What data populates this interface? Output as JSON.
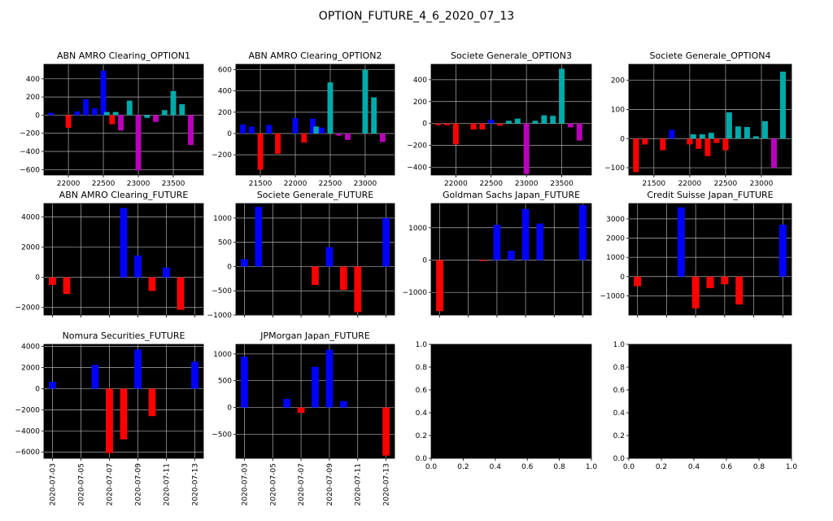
{
  "figure": {
    "title": "OPTION_FUTURE_4_6_2020_07_13"
  },
  "colors": {
    "axes_bg": "#000000",
    "grid": "#b0b0b0",
    "negative": "#ff0000",
    "positive": "#0000ff",
    "cyan": "#00aaaa",
    "magenta": "#bb00bb"
  },
  "chart_data": [
    {
      "type": "bar",
      "title": "ABN AMRO Clearing_OPTION1",
      "xlim": [
        21650,
        23930
      ],
      "ylim": [
        -660,
        560
      ],
      "xticks": [
        22000,
        22500,
        23000,
        23500
      ],
      "xtick_labels": [
        "22000",
        "22500",
        "23000",
        "23500"
      ],
      "yticks": [
        -600,
        -400,
        -200,
        0,
        200,
        400
      ],
      "bar_width": 80,
      "bars": [
        {
          "x": 21750,
          "value": 25,
          "color": "#0000ff"
        },
        {
          "x": 22000,
          "value": -140,
          "color": "#ff0000"
        },
        {
          "x": 22125,
          "value": 40,
          "color": "#0000ff"
        },
        {
          "x": 22250,
          "value": 175,
          "color": "#0000ff"
        },
        {
          "x": 22375,
          "value": 75,
          "color": "#0000ff"
        },
        {
          "x": 22500,
          "value": 490,
          "color": "#0000ff"
        },
        {
          "x": 22550,
          "value": 35,
          "color": "#00aaaa"
        },
        {
          "x": 22625,
          "value": -100,
          "color": "#ff0000"
        },
        {
          "x": 22675,
          "value": 35,
          "color": "#00aaaa"
        },
        {
          "x": 22750,
          "value": -170,
          "color": "#bb00bb"
        },
        {
          "x": 22875,
          "value": 160,
          "color": "#00aaaa"
        },
        {
          "x": 23000,
          "value": -610,
          "color": "#bb00bb"
        },
        {
          "x": 23125,
          "value": -30,
          "color": "#00aaaa"
        },
        {
          "x": 23250,
          "value": -75,
          "color": "#bb00bb"
        },
        {
          "x": 23375,
          "value": 55,
          "color": "#00aaaa"
        },
        {
          "x": 23500,
          "value": 265,
          "color": "#00aaaa"
        },
        {
          "x": 23625,
          "value": 120,
          "color": "#00aaaa"
        },
        {
          "x": 23750,
          "value": -330,
          "color": "#bb00bb"
        }
      ]
    },
    {
      "type": "bar",
      "title": "ABN AMRO Clearing_OPTION2",
      "xlim": [
        21150,
        23420
      ],
      "ylim": [
        -390,
        650
      ],
      "xticks": [
        21500,
        22000,
        22500,
        23000
      ],
      "xtick_labels": [
        "21500",
        "22000",
        "22500",
        "23000"
      ],
      "yticks": [
        -200,
        0,
        200,
        400,
        600
      ],
      "bar_width": 80,
      "bars": [
        {
          "x": 21250,
          "value": 85,
          "color": "#0000ff"
        },
        {
          "x": 21375,
          "value": 65,
          "color": "#0000ff"
        },
        {
          "x": 21500,
          "value": -340,
          "color": "#ff0000"
        },
        {
          "x": 21625,
          "value": 80,
          "color": "#0000ff"
        },
        {
          "x": 21750,
          "value": -190,
          "color": "#ff0000"
        },
        {
          "x": 22000,
          "value": 145,
          "color": "#0000ff"
        },
        {
          "x": 22125,
          "value": -85,
          "color": "#ff0000"
        },
        {
          "x": 22250,
          "value": 140,
          "color": "#0000ff"
        },
        {
          "x": 22300,
          "value": 65,
          "color": "#00aaaa"
        },
        {
          "x": 22375,
          "value": 55,
          "color": "#0000ff"
        },
        {
          "x": 22500,
          "value": 480,
          "color": "#00aaaa"
        },
        {
          "x": 22625,
          "value": -20,
          "color": "#bb00bb"
        },
        {
          "x": 22750,
          "value": -60,
          "color": "#bb00bb"
        },
        {
          "x": 23000,
          "value": 600,
          "color": "#00aaaa"
        },
        {
          "x": 23125,
          "value": 340,
          "color": "#00aaaa"
        },
        {
          "x": 23250,
          "value": -80,
          "color": "#bb00bb"
        }
      ]
    },
    {
      "type": "bar",
      "title": "Societe Generale_OPTION3",
      "xlim": [
        21650,
        23920
      ],
      "ylim": [
        -470,
        540
      ],
      "xticks": [
        22000,
        22500,
        23000,
        23500
      ],
      "xtick_labels": [
        "22000",
        "22500",
        "23000",
        "23500"
      ],
      "yticks": [
        -400,
        -200,
        0,
        200,
        400
      ],
      "bar_width": 80,
      "bars": [
        {
          "x": 21750,
          "value": -15,
          "color": "#ff0000"
        },
        {
          "x": 21875,
          "value": -15,
          "color": "#ff0000"
        },
        {
          "x": 22000,
          "value": -190,
          "color": "#ff0000"
        },
        {
          "x": 22250,
          "value": -55,
          "color": "#ff0000"
        },
        {
          "x": 22375,
          "value": -55,
          "color": "#ff0000"
        },
        {
          "x": 22500,
          "value": 35,
          "color": "#0000ff"
        },
        {
          "x": 22625,
          "value": -20,
          "color": "#ff0000"
        },
        {
          "x": 22750,
          "value": 25,
          "color": "#00aaaa"
        },
        {
          "x": 22875,
          "value": 45,
          "color": "#00aaaa"
        },
        {
          "x": 23000,
          "value": -460,
          "color": "#bb00bb"
        },
        {
          "x": 23125,
          "value": 25,
          "color": "#00aaaa"
        },
        {
          "x": 23250,
          "value": 75,
          "color": "#00aaaa"
        },
        {
          "x": 23375,
          "value": 70,
          "color": "#00aaaa"
        },
        {
          "x": 23500,
          "value": 500,
          "color": "#00aaaa"
        },
        {
          "x": 23625,
          "value": -35,
          "color": "#bb00bb"
        },
        {
          "x": 23750,
          "value": -155,
          "color": "#bb00bb"
        }
      ]
    },
    {
      "type": "bar",
      "title": "Societe Generale_OPTION4",
      "xlim": [
        21150,
        23420
      ],
      "ylim": [
        -125,
        255
      ],
      "xticks": [
        21500,
        22000,
        22500,
        23000
      ],
      "xtick_labels": [
        "21500",
        "22000",
        "22500",
        "23000"
      ],
      "yticks": [
        -100,
        0,
        100,
        200
      ],
      "bar_width": 80,
      "bars": [
        {
          "x": 21250,
          "value": -115,
          "color": "#ff0000"
        },
        {
          "x": 21375,
          "value": -20,
          "color": "#ff0000"
        },
        {
          "x": 21625,
          "value": -40,
          "color": "#ff0000"
        },
        {
          "x": 21750,
          "value": 30,
          "color": "#0000ff"
        },
        {
          "x": 22000,
          "value": -20,
          "color": "#ff0000"
        },
        {
          "x": 22050,
          "value": 15,
          "color": "#00aaaa"
        },
        {
          "x": 22125,
          "value": -35,
          "color": "#ff0000"
        },
        {
          "x": 22175,
          "value": 15,
          "color": "#00aaaa"
        },
        {
          "x": 22250,
          "value": -60,
          "color": "#ff0000"
        },
        {
          "x": 22300,
          "value": 20,
          "color": "#00aaaa"
        },
        {
          "x": 22375,
          "value": -15,
          "color": "#ff0000"
        },
        {
          "x": 22500,
          "value": -40,
          "color": "#ff0000"
        },
        {
          "x": 22550,
          "value": 90,
          "color": "#00aaaa"
        },
        {
          "x": 22675,
          "value": 42,
          "color": "#00aaaa"
        },
        {
          "x": 22800,
          "value": 40,
          "color": "#00aaaa"
        },
        {
          "x": 22925,
          "value": 8,
          "color": "#00aaaa"
        },
        {
          "x": 23050,
          "value": 60,
          "color": "#00aaaa"
        },
        {
          "x": 23175,
          "value": -100,
          "color": "#bb00bb"
        },
        {
          "x": 23300,
          "value": 230,
          "color": "#00aaaa"
        }
      ]
    },
    {
      "type": "bar",
      "title": "ABN AMRO Clearing_FUTURE",
      "xlim": [
        -0.6,
        10.6
      ],
      "ylim": [
        -2500,
        4900
      ],
      "xticks": [
        0,
        2,
        4,
        6,
        8,
        10
      ],
      "xtick_labels": [],
      "yticks": [
        -2000,
        0,
        2000,
        4000
      ],
      "bar_width": 0.5,
      "bars": [
        {
          "x": 0,
          "value": -500,
          "color": "#ff0000"
        },
        {
          "x": 1,
          "value": -1100,
          "color": "#ff0000"
        },
        {
          "x": 5,
          "value": 4600,
          "color": "#0000ff"
        },
        {
          "x": 6,
          "value": 1450,
          "color": "#0000ff"
        },
        {
          "x": 7,
          "value": -900,
          "color": "#ff0000"
        },
        {
          "x": 8,
          "value": 650,
          "color": "#0000ff"
        },
        {
          "x": 9,
          "value": -2150,
          "color": "#ff0000"
        }
      ]
    },
    {
      "type": "bar",
      "title": "Societe Generale_FUTURE",
      "xlim": [
        -0.6,
        10.6
      ],
      "ylim": [
        -1000,
        1300
      ],
      "xticks": [
        0,
        2,
        4,
        6,
        8,
        10
      ],
      "xtick_labels": [],
      "yticks": [
        -1000,
        -500,
        0,
        500,
        1000
      ],
      "bar_width": 0.5,
      "bars": [
        {
          "x": 0,
          "value": 150,
          "color": "#0000ff"
        },
        {
          "x": 1,
          "value": 1230,
          "color": "#0000ff"
        },
        {
          "x": 5,
          "value": -380,
          "color": "#ff0000"
        },
        {
          "x": 6,
          "value": 400,
          "color": "#0000ff"
        },
        {
          "x": 7,
          "value": -480,
          "color": "#ff0000"
        },
        {
          "x": 8,
          "value": -940,
          "color": "#ff0000"
        },
        {
          "x": 10,
          "value": 1000,
          "color": "#0000ff"
        }
      ]
    },
    {
      "type": "bar",
      "title": "Goldman Sachs Japan_FUTURE",
      "xlim": [
        -0.6,
        10.6
      ],
      "ylim": [
        -1700,
        1750
      ],
      "xticks": [
        0,
        2,
        4,
        6,
        8,
        10
      ],
      "xtick_labels": [],
      "yticks": [
        -1000,
        0,
        1000
      ],
      "bar_width": 0.5,
      "bars": [
        {
          "x": 0,
          "value": -1580,
          "color": "#ff0000"
        },
        {
          "x": 3,
          "value": -30,
          "color": "#ff0000"
        },
        {
          "x": 4,
          "value": 1090,
          "color": "#0000ff"
        },
        {
          "x": 5,
          "value": 290,
          "color": "#0000ff"
        },
        {
          "x": 6,
          "value": 1580,
          "color": "#0000ff"
        },
        {
          "x": 7,
          "value": 1130,
          "color": "#0000ff"
        },
        {
          "x": 10,
          "value": 1700,
          "color": "#0000ff"
        }
      ]
    },
    {
      "type": "bar",
      "title": "Credit Suisse Japan_FUTURE",
      "xlim": [
        -0.6,
        10.6
      ],
      "ylim": [
        -2000,
        3800
      ],
      "xticks": [
        0,
        2,
        4,
        6,
        8,
        10
      ],
      "xtick_labels": [],
      "yticks": [
        -1000,
        0,
        1000,
        2000,
        3000
      ],
      "bar_width": 0.5,
      "bars": [
        {
          "x": 0,
          "value": -500,
          "color": "#ff0000"
        },
        {
          "x": 3,
          "value": 3600,
          "color": "#0000ff"
        },
        {
          "x": 4,
          "value": -1650,
          "color": "#ff0000"
        },
        {
          "x": 5,
          "value": -600,
          "color": "#ff0000"
        },
        {
          "x": 6,
          "value": -400,
          "color": "#ff0000"
        },
        {
          "x": 7,
          "value": -1450,
          "color": "#ff0000"
        },
        {
          "x": 10,
          "value": 2700,
          "color": "#0000ff"
        }
      ]
    },
    {
      "type": "bar",
      "title": "Nomura Securities_FUTURE",
      "xlim": [
        -0.6,
        10.6
      ],
      "ylim": [
        -6600,
        4200
      ],
      "xticks": [
        0,
        2,
        4,
        6,
        8,
        10
      ],
      "xtick_labels": [
        "2020-07-03",
        "2020-07-05",
        "2020-07-07",
        "2020-07-09",
        "2020-07-11",
        "2020-07-13"
      ],
      "yticks": [
        -6000,
        -4000,
        -2000,
        0,
        2000,
        4000
      ],
      "bar_width": 0.5,
      "bars": [
        {
          "x": 0,
          "value": 650,
          "color": "#0000ff"
        },
        {
          "x": 3,
          "value": 2250,
          "color": "#0000ff"
        },
        {
          "x": 4,
          "value": -6100,
          "color": "#ff0000"
        },
        {
          "x": 5,
          "value": -4800,
          "color": "#ff0000"
        },
        {
          "x": 6,
          "value": 3700,
          "color": "#0000ff"
        },
        {
          "x": 7,
          "value": -2600,
          "color": "#ff0000"
        },
        {
          "x": 10,
          "value": 2550,
          "color": "#0000ff"
        }
      ]
    },
    {
      "type": "bar",
      "title": "JPMorgan Japan_FUTURE",
      "xlim": [
        -0.6,
        10.6
      ],
      "ylim": [
        -950,
        1180
      ],
      "xticks": [
        0,
        2,
        4,
        6,
        8,
        10
      ],
      "xtick_labels": [
        "2020-07-03",
        "2020-07-05",
        "2020-07-07",
        "2020-07-09",
        "2020-07-11",
        "2020-07-13"
      ],
      "yticks": [
        -500,
        0,
        500,
        1000
      ],
      "bar_width": 0.5,
      "bars": [
        {
          "x": 0,
          "value": 950,
          "color": "#0000ff"
        },
        {
          "x": 3,
          "value": 160,
          "color": "#0000ff"
        },
        {
          "x": 4,
          "value": -100,
          "color": "#ff0000"
        },
        {
          "x": 5,
          "value": 760,
          "color": "#0000ff"
        },
        {
          "x": 6,
          "value": 1080,
          "color": "#0000ff"
        },
        {
          "x": 7,
          "value": 120,
          "color": "#0000ff"
        },
        {
          "x": 10,
          "value": -900,
          "color": "#ff0000"
        }
      ]
    },
    {
      "type": "bar",
      "title": "",
      "xlim": [
        0,
        1
      ],
      "ylim": [
        0,
        1
      ],
      "xticks": [
        0,
        0.2,
        0.4,
        0.6,
        0.8,
        1.0
      ],
      "xtick_labels": [
        "0.0",
        "0.2",
        "0.4",
        "0.6",
        "0.8",
        "1.0"
      ],
      "yticks": [
        0,
        0.2,
        0.4,
        0.6,
        0.8,
        1.0
      ],
      "ytick_labels": [
        "0.0",
        "0.2",
        "0.4",
        "0.6",
        "0.8",
        "1.0"
      ],
      "grid": false,
      "bars": []
    },
    {
      "type": "bar",
      "title": "",
      "xlim": [
        0,
        1
      ],
      "ylim": [
        0,
        1
      ],
      "xticks": [
        0,
        0.2,
        0.4,
        0.6,
        0.8,
        1.0
      ],
      "xtick_labels": [
        "0.0",
        "0.2",
        "0.4",
        "0.6",
        "0.8",
        "1.0"
      ],
      "yticks": [
        0,
        0.2,
        0.4,
        0.6,
        0.8,
        1.0
      ],
      "ytick_labels": [
        "0.0",
        "0.2",
        "0.4",
        "0.6",
        "0.8",
        "1.0"
      ],
      "grid": false,
      "bars": []
    }
  ]
}
